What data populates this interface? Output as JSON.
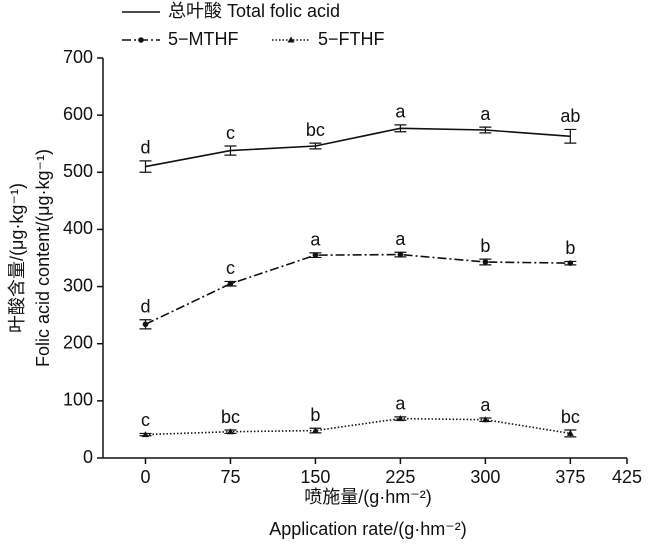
{
  "chart_data": {
    "type": "line",
    "x": [
      0,
      75,
      150,
      225,
      300,
      375
    ],
    "xlim": [
      -37.5,
      425
    ],
    "xticks": [
      0,
      75,
      150,
      225,
      300,
      375,
      425
    ],
    "ylim": [
      0,
      700
    ],
    "yticks": [
      0,
      100,
      200,
      300,
      400,
      500,
      600,
      700
    ],
    "x_label": "喷施量/(g·hm⁻²)",
    "x_label_en": "Application rate/(g·hm⁻²)",
    "y_label": "叶酸含量/(μg·kg⁻¹)",
    "y_label_en": "Folic acid content/(μg·kg⁻¹)",
    "series": [
      {
        "name": "总叶酸 Total folic acid",
        "color": "#111111",
        "style": "solid",
        "marker": "none",
        "values": [
          510,
          538,
          546,
          577,
          574,
          563
        ],
        "errors": [
          10,
          8,
          5,
          6,
          5,
          12
        ],
        "letters": [
          "d",
          "c",
          "bc",
          "a",
          "a",
          "ab"
        ]
      },
      {
        "name": "5−MTHF",
        "color": "#111111",
        "style": "dashdot",
        "marker": "circle",
        "values": [
          234,
          305,
          355,
          356,
          343,
          341
        ],
        "errors": [
          8,
          4,
          4,
          4,
          5,
          3
        ],
        "letters": [
          "d",
          "c",
          "a",
          "a",
          "b",
          "b"
        ]
      },
      {
        "name": "5−FTHF",
        "color": "#111111",
        "style": "dotted",
        "marker": "triangle",
        "values": [
          41,
          46,
          48,
          69,
          67,
          43
        ],
        "errors": [
          2,
          3,
          4,
          3,
          3,
          6
        ],
        "letters": [
          "c",
          "bc",
          "b",
          "a",
          "a",
          "bc"
        ]
      }
    ]
  }
}
